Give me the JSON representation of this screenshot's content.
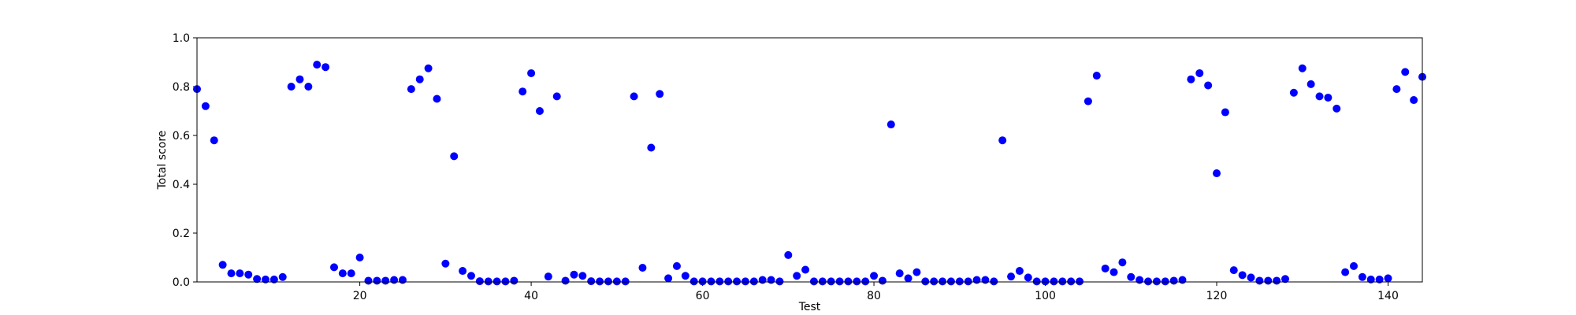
{
  "chart_data": {
    "type": "scatter",
    "title": "",
    "xlabel": "Test",
    "ylabel": "Total score",
    "xlim": [
      1,
      144
    ],
    "ylim": [
      0,
      1.0
    ],
    "xticks": [
      20,
      40,
      60,
      80,
      100,
      120,
      140
    ],
    "xtick_labels": [
      "20",
      "40",
      "60",
      "80",
      "100",
      "120",
      "140"
    ],
    "yticks": [
      0.0,
      0.2,
      0.4,
      0.6,
      0.8,
      1.0
    ],
    "ytick_labels": [
      "0.0",
      "0.2",
      "0.4",
      "0.6",
      "0.8",
      "1.0"
    ],
    "grid": false,
    "marker_color": "#0000ff",
    "series": [
      {
        "x": [
          1,
          2,
          3,
          4,
          5,
          6,
          7,
          8,
          9,
          10,
          11,
          12,
          13,
          14,
          15,
          16,
          17,
          18,
          19,
          20,
          21,
          22,
          23,
          24,
          25,
          26,
          27,
          28,
          29,
          30,
          31,
          32,
          33,
          34,
          35,
          36,
          37,
          38,
          39,
          40,
          41,
          42,
          43,
          44,
          45,
          46,
          47,
          48,
          49,
          50,
          51,
          52,
          53,
          54,
          55,
          56,
          57,
          58,
          59,
          60,
          61,
          62,
          63,
          64,
          65,
          66,
          67,
          68,
          69,
          70,
          71,
          72,
          73,
          74,
          75,
          76,
          77,
          78,
          79,
          80,
          81,
          82,
          83,
          84,
          85,
          86,
          87,
          88,
          89,
          90,
          91,
          92,
          93,
          94,
          95,
          96,
          97,
          98,
          99,
          100,
          101,
          102,
          103,
          104,
          105,
          106,
          107,
          108,
          109,
          110,
          111,
          112,
          113,
          114,
          115,
          116,
          117,
          118,
          119,
          120,
          121,
          122,
          123,
          124,
          125,
          126,
          127,
          128,
          129,
          130,
          131,
          132,
          133,
          134,
          135,
          136,
          137,
          138,
          139,
          140,
          141,
          142,
          143,
          144
        ],
        "y": [
          0.79,
          0.72,
          0.58,
          0.07,
          0.035,
          0.035,
          0.03,
          0.012,
          0.01,
          0.01,
          0.02,
          0.8,
          0.83,
          0.8,
          0.89,
          0.88,
          0.06,
          0.035,
          0.035,
          0.1,
          0.005,
          0.005,
          0.005,
          0.008,
          0.008,
          0.79,
          0.83,
          0.875,
          0.75,
          0.075,
          0.515,
          0.045,
          0.025,
          0.003,
          0.002,
          0.002,
          0.002,
          0.005,
          0.78,
          0.855,
          0.7,
          0.022,
          0.76,
          0.005,
          0.03,
          0.025,
          0.003,
          0.002,
          0.002,
          0.002,
          0.002,
          0.76,
          0.058,
          0.55,
          0.77,
          0.015,
          0.065,
          0.025,
          0.002,
          0.002,
          0.002,
          0.002,
          0.002,
          0.002,
          0.002,
          0.002,
          0.008,
          0.008,
          0.002,
          0.11,
          0.025,
          0.05,
          0.002,
          0.002,
          0.002,
          0.002,
          0.002,
          0.002,
          0.002,
          0.025,
          0.005,
          0.645,
          0.035,
          0.015,
          0.04,
          0.002,
          0.002,
          0.002,
          0.002,
          0.002,
          0.002,
          0.008,
          0.008,
          0.002,
          0.58,
          0.022,
          0.045,
          0.018,
          0.002,
          0.002,
          0.002,
          0.002,
          0.002,
          0.002,
          0.74,
          0.845,
          0.055,
          0.04,
          0.08,
          0.02,
          0.008,
          0.002,
          0.002,
          0.002,
          0.005,
          0.008,
          0.83,
          0.855,
          0.805,
          0.445,
          0.695,
          0.048,
          0.028,
          0.018,
          0.005,
          0.005,
          0.005,
          0.012,
          0.775,
          0.875,
          0.81,
          0.76,
          0.755,
          0.71,
          0.04,
          0.065,
          0.02,
          0.01,
          0.01,
          0.015,
          0.79,
          0.86,
          0.745,
          0.84
        ]
      }
    ]
  }
}
